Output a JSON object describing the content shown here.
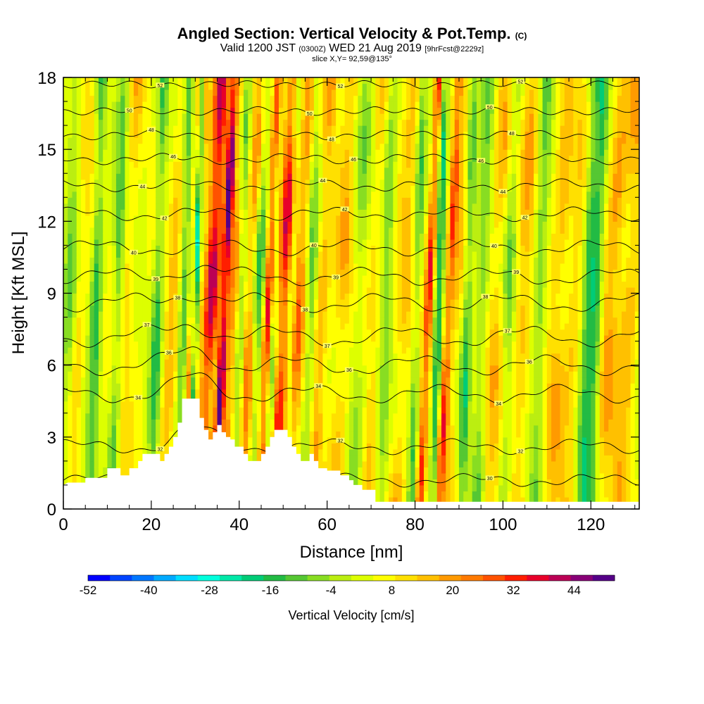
{
  "header": {
    "title_main": "Angled Section: Vertical Velocity & Pot.Temp.",
    "title_unit": "(C)",
    "valid_a": "Valid 1200 JST",
    "valid_zulu": "(0300Z)",
    "valid_b": "WED 21 Aug 2019",
    "forecast": "[9hrFcst@2229z]",
    "slice": "slice X,Y= 92,59@135°"
  },
  "chart_data": {
    "type": "heatmap",
    "xlabel": "Distance [nm]",
    "ylabel": "Height [Kft MSL]",
    "xlim": [
      0,
      131
    ],
    "ylim": [
      0,
      18
    ],
    "x_ticks": [
      0,
      20,
      40,
      60,
      80,
      100,
      120
    ],
    "y_ticks": [
      0,
      3,
      6,
      9,
      12,
      15,
      18
    ],
    "colorbar": {
      "title": "Vertical Velocity [cm/s]",
      "min": -52,
      "max": 52,
      "tick_labels": [
        "-52",
        "-40",
        "-28",
        "-16",
        "-4",
        "8",
        "20",
        "32",
        "44"
      ],
      "colors": [
        "#0000ff",
        "#0044ff",
        "#0077ff",
        "#00aaff",
        "#00ddff",
        "#00ffdd",
        "#00e8a8",
        "#00cc77",
        "#22bb44",
        "#55c733",
        "#88dd22",
        "#bbee11",
        "#ddff00",
        "#ffff00",
        "#ffe000",
        "#ffc000",
        "#ff9a00",
        "#ff7a00",
        "#ff5200",
        "#ff1e00",
        "#e8002a",
        "#bb0055",
        "#880077",
        "#550088"
      ]
    },
    "theta_contours": [
      {
        "label": "30",
        "h": 1.2
      },
      {
        "label": "32",
        "h": 2.6
      },
      {
        "label": "34",
        "h": 4.8
      },
      {
        "label": "36",
        "h": 6.0
      },
      {
        "label": "37",
        "h": 7.2
      },
      {
        "label": "38",
        "h": 8.6
      },
      {
        "label": "39",
        "h": 9.7
      },
      {
        "label": "40",
        "h": 10.9
      },
      {
        "label": "42",
        "h": 12.3
      },
      {
        "label": "44",
        "h": 13.5
      },
      {
        "label": "46",
        "h": 14.6
      },
      {
        "label": "48",
        "h": 15.6
      },
      {
        "label": "50",
        "h": 16.6
      },
      {
        "label": "52",
        "h": 17.7
      }
    ],
    "updrafts": [
      {
        "x": 3,
        "w": 1.5,
        "amp": 8
      },
      {
        "x": 14,
        "w": 1.5,
        "amp": 10
      },
      {
        "x": 24,
        "w": 1.5,
        "amp": 12
      },
      {
        "x": 29,
        "w": 1.2,
        "amp": 16
      },
      {
        "x": 33,
        "w": 1.8,
        "amp": 40
      },
      {
        "x": 36,
        "w": 1.0,
        "amp": 48
      },
      {
        "x": 38,
        "w": 1.4,
        "amp": 16
      },
      {
        "x": 42,
        "w": 1.4,
        "amp": 22
      },
      {
        "x": 46,
        "w": 1.0,
        "amp": 34
      },
      {
        "x": 49.5,
        "w": 1.6,
        "amp": 36
      },
      {
        "x": 53,
        "w": 1.5,
        "amp": 20
      },
      {
        "x": 58,
        "w": 1.5,
        "amp": 16
      },
      {
        "x": 63,
        "w": 2.0,
        "amp": 14
      },
      {
        "x": 70,
        "w": 2.0,
        "amp": 10
      },
      {
        "x": 77,
        "w": 2.0,
        "amp": 12
      },
      {
        "x": 82.5,
        "w": 1.0,
        "amp": 32
      },
      {
        "x": 87,
        "w": 1.0,
        "amp": 26
      },
      {
        "x": 89,
        "w": 2.0,
        "amp": 10
      },
      {
        "x": 98,
        "w": 2.2,
        "amp": 14
      },
      {
        "x": 104,
        "w": 2.0,
        "amp": 14
      },
      {
        "x": 112,
        "w": 2.0,
        "amp": 14
      },
      {
        "x": 116,
        "w": 2.0,
        "amp": 10
      },
      {
        "x": 124,
        "w": 2.2,
        "amp": 16
      },
      {
        "x": 128,
        "w": 2.0,
        "amp": 14
      }
    ],
    "downdrafts": [
      {
        "x": 1,
        "w": 1.5,
        "amp": 12
      },
      {
        "x": 7,
        "w": 1.2,
        "amp": 20
      },
      {
        "x": 12,
        "w": 1.2,
        "amp": 16
      },
      {
        "x": 21,
        "w": 1.2,
        "amp": 18
      },
      {
        "x": 27,
        "w": 1.0,
        "amp": 18
      },
      {
        "x": 29.8,
        "w": 0.6,
        "amp": 40
      },
      {
        "x": 40,
        "w": 1.0,
        "amp": 16
      },
      {
        "x": 44,
        "w": 1.3,
        "amp": 18
      },
      {
        "x": 47.5,
        "w": 0.8,
        "amp": 14
      },
      {
        "x": 51.5,
        "w": 0.8,
        "amp": 14
      },
      {
        "x": 56,
        "w": 1.2,
        "amp": 14
      },
      {
        "x": 67,
        "w": 2.0,
        "amp": 10
      },
      {
        "x": 73,
        "w": 1.4,
        "amp": 14
      },
      {
        "x": 80,
        "w": 1.0,
        "amp": 16
      },
      {
        "x": 85,
        "w": 0.9,
        "amp": 26
      },
      {
        "x": 91.5,
        "w": 1.2,
        "amp": 20
      },
      {
        "x": 95,
        "w": 1.5,
        "amp": 14
      },
      {
        "x": 101,
        "w": 1.5,
        "amp": 14
      },
      {
        "x": 108,
        "w": 1.5,
        "amp": 14
      },
      {
        "x": 119,
        "w": 1.6,
        "amp": 22
      },
      {
        "x": 121,
        "w": 1.3,
        "amp": 18
      }
    ],
    "terrain": [
      [
        0,
        1.0
      ],
      [
        1,
        1.1
      ],
      [
        5,
        1.1
      ],
      [
        5,
        1.3
      ],
      [
        10,
        1.3
      ],
      [
        10,
        1.7
      ],
      [
        13,
        1.7
      ],
      [
        13,
        1.4
      ],
      [
        15,
        1.4
      ],
      [
        15,
        1.7
      ],
      [
        17,
        1.7
      ],
      [
        17,
        2.0
      ],
      [
        18,
        2.0
      ],
      [
        18,
        2.3
      ],
      [
        22,
        2.3
      ],
      [
        22,
        2.0
      ],
      [
        23,
        2.0
      ],
      [
        23,
        2.3
      ],
      [
        24,
        2.3
      ],
      [
        24,
        2.6
      ],
      [
        25,
        2.6
      ],
      [
        25,
        3.0
      ],
      [
        26,
        3.0
      ],
      [
        26,
        3.6
      ],
      [
        27,
        3.6
      ],
      [
        27,
        4.6
      ],
      [
        31,
        4.6
      ],
      [
        31,
        3.8
      ],
      [
        32,
        3.8
      ],
      [
        32,
        3.3
      ],
      [
        33,
        3.3
      ],
      [
        33,
        2.9
      ],
      [
        34,
        2.9
      ],
      [
        34,
        3.2
      ],
      [
        35,
        3.2
      ],
      [
        35,
        3.5
      ],
      [
        36,
        3.5
      ],
      [
        36,
        3.2
      ],
      [
        37,
        3.2
      ],
      [
        37,
        3.0
      ],
      [
        38,
        3.0
      ],
      [
        38,
        2.9
      ],
      [
        39,
        2.9
      ],
      [
        39,
        2.6
      ],
      [
        41,
        2.6
      ],
      [
        41,
        2.3
      ],
      [
        42,
        2.3
      ],
      [
        42,
        2.0
      ],
      [
        45,
        2.0
      ],
      [
        45,
        2.3
      ],
      [
        46,
        2.3
      ],
      [
        46,
        2.6
      ],
      [
        47,
        2.6
      ],
      [
        47,
        3.0
      ],
      [
        48,
        3.0
      ],
      [
        48,
        3.3
      ],
      [
        51,
        3.3
      ],
      [
        51,
        3.0
      ],
      [
        52,
        3.0
      ],
      [
        52,
        2.6
      ],
      [
        53,
        2.6
      ],
      [
        53,
        2.3
      ],
      [
        54,
        2.3
      ],
      [
        54,
        2.0
      ],
      [
        56,
        2.0
      ],
      [
        56,
        2.3
      ],
      [
        57,
        2.3
      ],
      [
        57,
        2.0
      ],
      [
        58,
        2.0
      ],
      [
        58,
        1.7
      ],
      [
        60,
        1.7
      ],
      [
        60,
        1.6
      ],
      [
        63,
        1.6
      ],
      [
        63,
        1.4
      ],
      [
        65,
        1.4
      ],
      [
        65,
        1.2
      ],
      [
        66,
        1.2
      ],
      [
        66,
        1.0
      ],
      [
        68,
        1.0
      ],
      [
        68,
        0.8
      ],
      [
        71,
        0.8
      ],
      [
        71,
        0.3
      ],
      [
        131,
        0.3
      ]
    ]
  }
}
